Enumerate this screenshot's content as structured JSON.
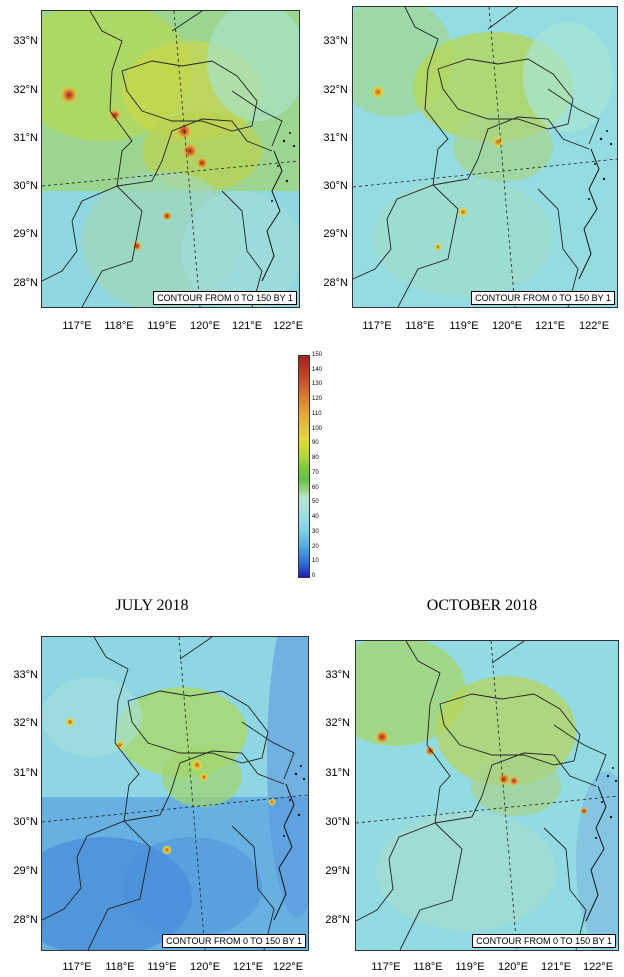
{
  "contour_label": "CONTOUR FROM 0 TO 150 BY 1",
  "lat_labels": [
    "33°N",
    "32°N",
    "31°N",
    "30°N",
    "29°N",
    "28°N"
  ],
  "lon_labels": [
    "117°E",
    "118°E",
    "119°E",
    "120°E",
    "121°E",
    "122°E"
  ],
  "panels": [
    {
      "month": ""
    },
    {
      "month": ""
    },
    {
      "month": "JULY 2018"
    },
    {
      "month": "OCTOBER 2018"
    }
  ],
  "colorbar": {
    "ticks": [
      "150",
      "140",
      "130",
      "120",
      "110",
      "100",
      "90",
      "80",
      "70",
      "60",
      "50",
      "40",
      "30",
      "20",
      "10",
      "0"
    ],
    "colors": [
      "#1c1ab0",
      "#3d8fe0",
      "#8cd4e8",
      "#b6e4d4",
      "#66c24a",
      "#a5d23a",
      "#e3d640",
      "#e39a38",
      "#c9542a",
      "#a5231c"
    ]
  }
}
